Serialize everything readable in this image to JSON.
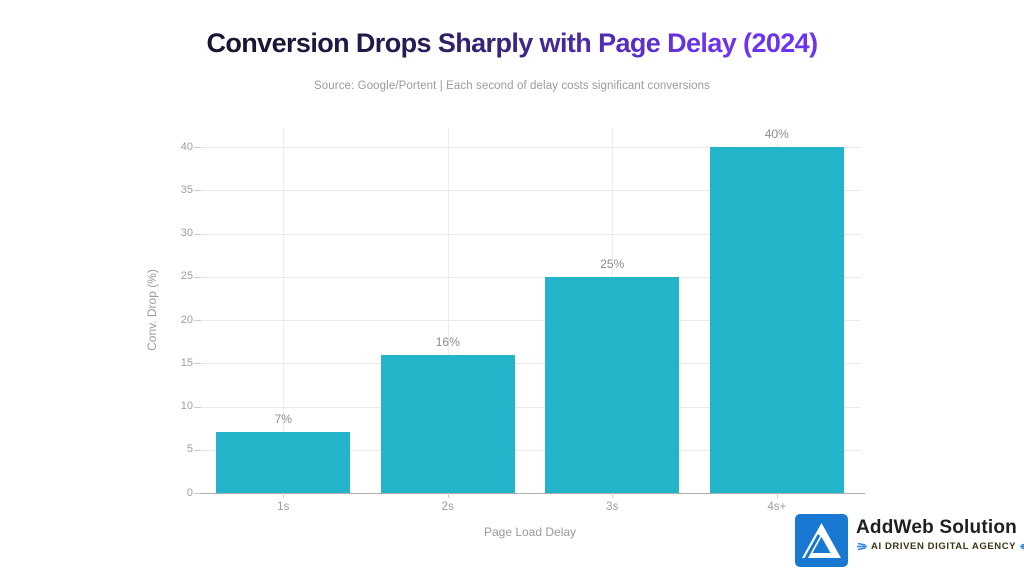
{
  "header": {
    "title_dark": "Conversion Drops Sharply with",
    "title_accent": "Page Delay (2024)",
    "subtitle": "Source: Google/Portent | Each second of delay costs significant conversions"
  },
  "chart_data": {
    "type": "bar",
    "title": "Conversion Drops Sharply with Page Delay (2024)",
    "categories": [
      "1s",
      "2s",
      "3s",
      "4s+"
    ],
    "values": [
      7,
      16,
      25,
      40
    ],
    "data_labels": [
      "7%",
      "16%",
      "25%",
      "40%"
    ],
    "xlabel": "Page Load Delay",
    "ylabel": "Conv. Drop (%)",
    "ylim": [
      0,
      40
    ],
    "yticks": [
      0,
      5,
      10,
      15,
      20,
      25,
      30,
      35,
      40
    ],
    "grid": true,
    "legend": false,
    "bar_color": "#23b4ca"
  },
  "branding": {
    "name": "AddWeb Solution",
    "tagline": "AI DRIVEN DIGITAL AGENCY",
    "logo_color": "#1878d2",
    "tagline_accent": "#2e86de"
  },
  "colors": {
    "title_gradient_start": "#18122d",
    "title_gradient_end": "#6c34f0",
    "bar": "#23b4ca",
    "axis_text": "#9b9b9b",
    "tick_text": "#9e9e9e",
    "gridline": "#e9e9e9",
    "axis_line": "#ababab",
    "background": "#ffffff"
  }
}
